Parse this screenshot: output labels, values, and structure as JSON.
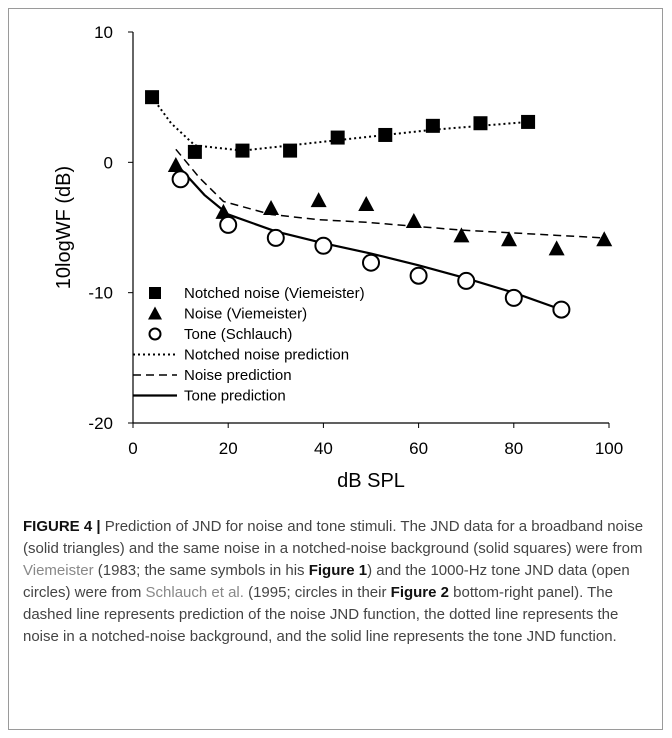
{
  "chart_data": {
    "type": "scatter",
    "xlabel": "dB SPL",
    "ylabel": "10logWF (dB)",
    "xlim": [
      0,
      100
    ],
    "ylim": [
      -20,
      10
    ],
    "x_ticks": [
      "0",
      "20",
      "40",
      "60",
      "80",
      "100"
    ],
    "y_ticks": [
      "10",
      "0",
      "-10",
      "-20"
    ],
    "grid": false,
    "legend_position": "bottom-left",
    "series": [
      {
        "name": "Notched noise (Viemeister)",
        "marker": "square",
        "x": [
          4,
          13,
          23,
          33,
          43,
          53,
          63,
          73,
          83
        ],
        "y": [
          5.0,
          0.8,
          0.9,
          0.9,
          1.9,
          2.1,
          2.8,
          3.0,
          3.1
        ]
      },
      {
        "name": "Noise (Viemeister)",
        "marker": "triangle",
        "x": [
          9,
          19,
          29,
          39,
          49,
          59,
          69,
          79,
          89,
          99
        ],
        "y": [
          -0.2,
          -3.8,
          -3.5,
          -2.9,
          -3.2,
          -4.5,
          -5.6,
          -5.9,
          -6.6,
          -5.9
        ]
      },
      {
        "name": "Tone (Schlauch)",
        "marker": "circle",
        "x": [
          10,
          20,
          30,
          40,
          50,
          60,
          70,
          80,
          90
        ],
        "y": [
          -1.3,
          -4.8,
          -5.8,
          -6.4,
          -7.7,
          -8.7,
          -9.1,
          -10.4,
          -11.3
        ]
      },
      {
        "name": "Notched noise prediction",
        "line": "dotted",
        "x": [
          4,
          8,
          13,
          23,
          33,
          43,
          53,
          63,
          73,
          83
        ],
        "y": [
          5.0,
          3.0,
          1.3,
          0.9,
          1.3,
          1.7,
          2.1,
          2.5,
          2.8,
          3.1
        ]
      },
      {
        "name": "Noise prediction",
        "line": "dashed",
        "x": [
          9,
          14,
          19,
          29,
          39,
          49,
          59,
          69,
          79,
          89,
          99
        ],
        "y": [
          1.0,
          -1.2,
          -3.0,
          -4.0,
          -4.4,
          -4.6,
          -4.9,
          -5.2,
          -5.4,
          -5.6,
          -5.8
        ]
      },
      {
        "name": "Tone prediction",
        "line": "solid",
        "x": [
          10,
          15,
          20,
          30,
          40,
          50,
          60,
          70,
          80,
          90
        ],
        "y": [
          -0.5,
          -2.5,
          -4.0,
          -5.3,
          -6.2,
          -7.0,
          -7.9,
          -8.9,
          -10.0,
          -11.3
        ]
      }
    ]
  },
  "caption": {
    "label": "FIGURE 4 |",
    "text_1": " Prediction of JND for noise and tone stimuli. The JND data for a broadband noise (solid triangles) and the same noise in a notched-noise background (solid squares) were from ",
    "ref_1": "Viemeister",
    "text_2": " (1983; the same symbols in his ",
    "fig_1": "Figure 1",
    "text_3": ") and the 1000-Hz tone JND data (open circles) were from ",
    "ref_2": "Schlauch et al.",
    "text_4": " (1995; circles in their ",
    "fig_2": "Figure 2",
    "text_5": " bottom-right panel). The dashed line represents prediction of the noise JND function, the dotted line represents the noise in a notched-noise background, and the solid line represents the tone JND function."
  }
}
